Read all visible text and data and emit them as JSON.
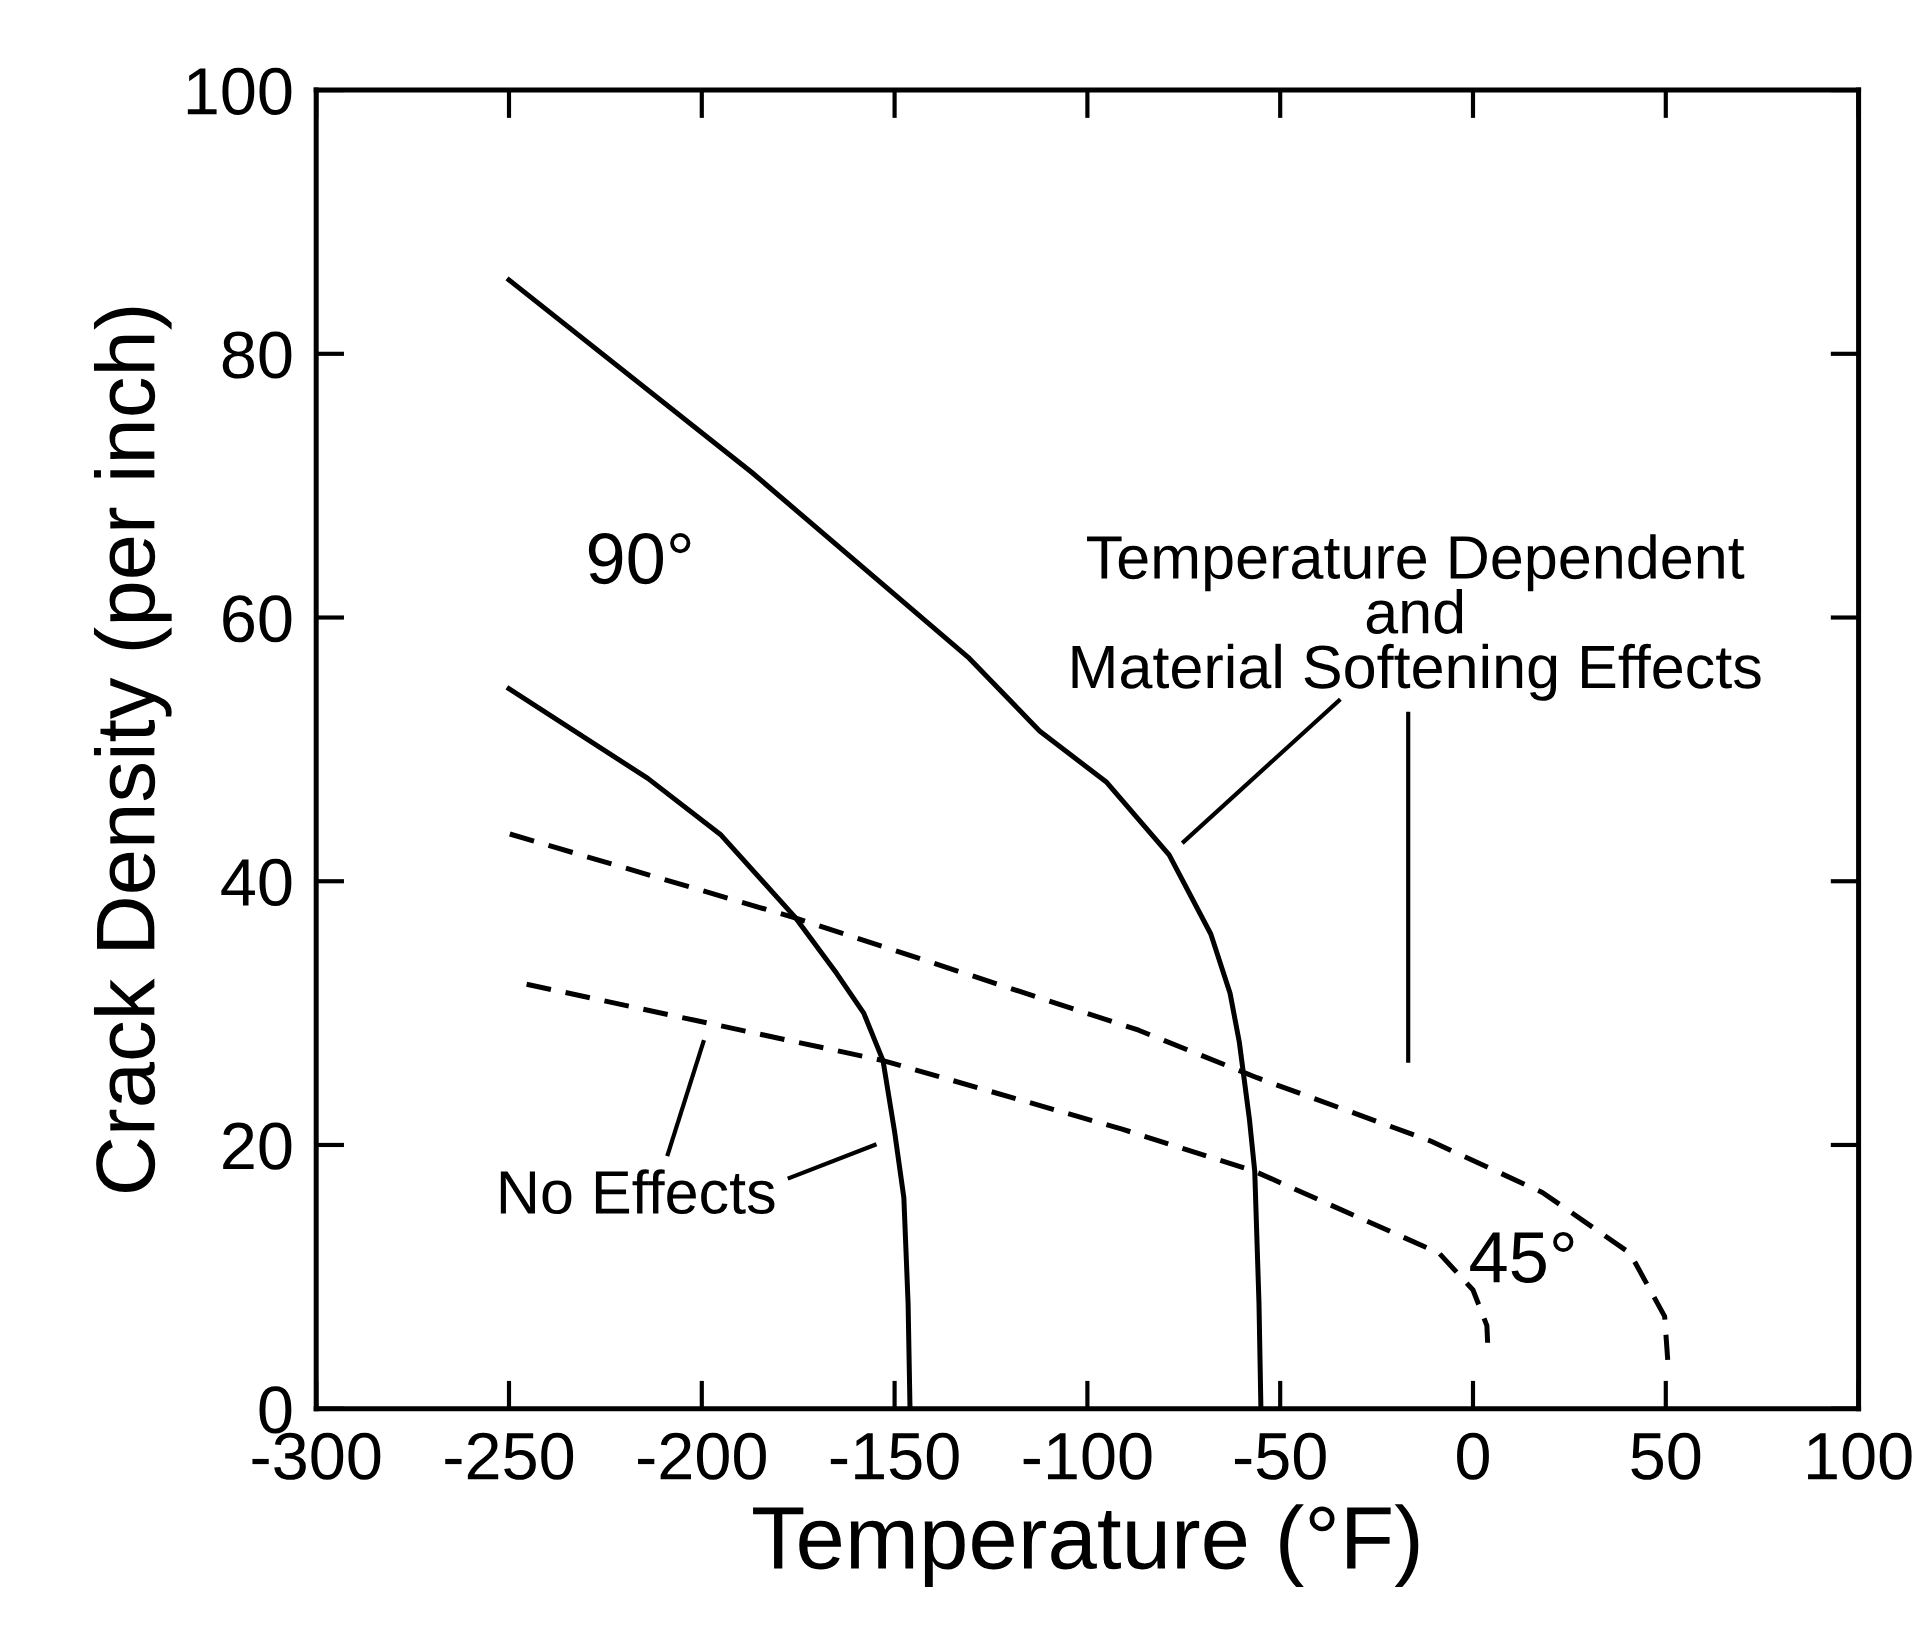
{
  "chart_data": {
    "type": "line",
    "xlabel": "Temperature (°F)",
    "ylabel": "Crack Density (per inch)",
    "xlim": [
      -300,
      100
    ],
    "ylim": [
      0,
      100
    ],
    "xticks": [
      -300,
      -250,
      -200,
      -150,
      -100,
      -50,
      0,
      50,
      100
    ],
    "yticks": [
      0,
      20,
      40,
      60,
      80,
      100
    ],
    "grid": false,
    "marker": "none",
    "series": [
      {
        "color": "#000000",
        "line_style": "solid",
        "x": [
          -250,
          -187,
          -130.6,
          -112.4,
          -95,
          -78.8,
          -68,
          -63,
          -60.6,
          -58,
          -56.6,
          -55.5,
          -55
        ],
        "values": [
          85.6,
          71,
          56.9,
          51.4,
          47.5,
          42,
          36,
          31.5,
          27.8,
          22,
          18,
          8,
          0
        ]
      },
      {
        "color": "#000000",
        "line_style": "solid",
        "x": [
          -250,
          -214,
          -195,
          -175.6,
          -165,
          -158,
          -153,
          -150,
          -147.6,
          -146.5,
          -146
        ],
        "values": [
          54.6,
          47.8,
          43.5,
          37.2,
          33,
          30,
          26.4,
          21,
          16,
          8,
          0
        ]
      },
      {
        "color": "#000000",
        "line_style": "dashed",
        "x": [
          -250,
          -175.6,
          -86.7,
          -56,
          -11,
          18,
          40.7,
          49.7,
          50.5
        ],
        "values": [
          43.6,
          37.2,
          28.7,
          25.1,
          20.3,
          16.4,
          11.8,
          7,
          3.7
        ]
      },
      {
        "color": "#000000",
        "line_style": "dashed",
        "x": [
          -245.6,
          -153,
          -91,
          -56.6,
          -8.8,
          0,
          3.6,
          3.8
        ],
        "values": [
          32.2,
          26.4,
          21.2,
          18,
          11.8,
          9,
          6.3,
          5
        ]
      }
    ],
    "annotations": [
      "90°",
      "45°",
      "No Effects",
      "Temperature Dependent\nand\nMaterial Softening Effects"
    ]
  }
}
